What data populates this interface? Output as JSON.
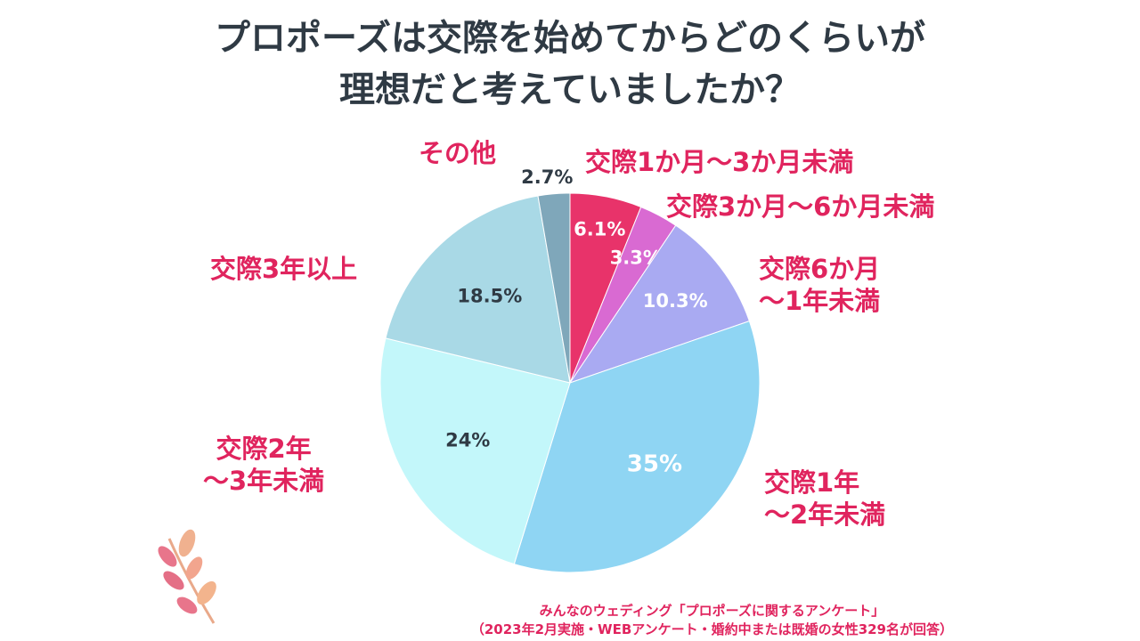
{
  "title": {
    "line1": "プロポーズは交際を始めてからどのくらいが",
    "line2": "理想だと考えていましたか？"
  },
  "chart_data": {
    "type": "pie",
    "title": "プロポーズは交際を始めてからどのくらいが理想だと考えていましたか？",
    "slices": [
      {
        "name": "交際1か月～3か月未満",
        "value": 6.1,
        "label": "6.1%",
        "color": "#e8336a",
        "text_color": "#ffffff"
      },
      {
        "name": "交際3か月～6か月未満",
        "value": 3.3,
        "label": "3.3%",
        "color": "#d96ad2",
        "text_color": "#ffffff"
      },
      {
        "name": "交際6か月～1年未満",
        "value": 10.3,
        "label": "10.3%",
        "color": "#a9aaf2",
        "text_color": "#ffffff"
      },
      {
        "name": "交際1年～2年未満",
        "value": 35,
        "label": "35%",
        "color": "#8fd5f3",
        "text_color": "#ffffff"
      },
      {
        "name": "交際2年～3年未満",
        "value": 24,
        "label": "24%",
        "color": "#c3f7fa",
        "text_color": "#2f3a44"
      },
      {
        "name": "交際3年以上",
        "value": 18.5,
        "label": "18.5%",
        "color": "#a9d9e6",
        "text_color": "#2f3a44"
      },
      {
        "name": "その他",
        "value": 2.7,
        "label": "2.7%",
        "color": "#7fa7ba",
        "text_color": "#2f3a44"
      }
    ]
  },
  "legend_labels": {
    "s0": [
      "交際1か月～3か月未満"
    ],
    "s1": [
      "交際3か月～6か月未満"
    ],
    "s2": [
      "交際6か月",
      "～1年未満"
    ],
    "s3": [
      "交際1年",
      "～2年未満"
    ],
    "s4": [
      "交際2年",
      "～3年未満"
    ],
    "s5": [
      "交際3年以上"
    ],
    "s6": [
      "その他"
    ]
  },
  "source": {
    "line1": "みんなのウェディング「プロポーズに関するアンケート」",
    "line2": "（2023年2月実施・WEBアンケート・婚約中または既婚の女性329名が回答）"
  }
}
